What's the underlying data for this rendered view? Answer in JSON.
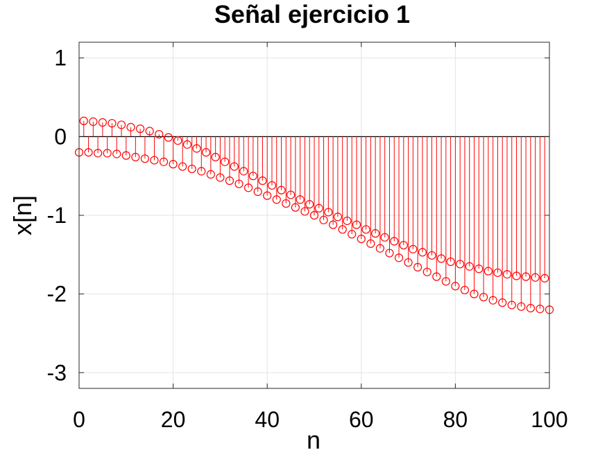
{
  "chart_data": {
    "type": "stem",
    "title": "Señal ejercicio 1",
    "xlabel": "n",
    "ylabel": "x[n]",
    "xlim": [
      0,
      100
    ],
    "ylim": [
      -3.2,
      1.2
    ],
    "xticks": [
      0,
      20,
      40,
      60,
      80,
      100
    ],
    "xtick_labels": [
      "0",
      "20",
      "40",
      "60",
      "80",
      "100"
    ],
    "yticks": [
      1,
      0,
      -1,
      -2,
      -3
    ],
    "ytick_labels": [
      "1",
      "0",
      "-1",
      "-2",
      "-3"
    ],
    "grid": true,
    "color": "#ff0000",
    "series": [
      {
        "x": [
          0,
          2,
          4,
          6,
          8,
          10,
          12,
          14,
          16,
          18,
          20,
          22,
          24,
          26,
          28,
          30,
          32,
          34,
          36,
          38,
          40,
          42,
          44,
          46,
          48,
          50,
          52,
          54,
          56,
          58,
          60,
          62,
          64,
          66,
          68,
          70,
          72,
          74,
          76,
          78,
          80,
          82,
          84,
          86,
          88,
          90,
          92,
          94,
          96,
          98,
          100
        ],
        "values": [
          -0.2,
          -0.2,
          -0.21,
          -0.21,
          -0.22,
          -0.24,
          -0.26,
          -0.28,
          -0.3,
          -0.32,
          -0.35,
          -0.38,
          -0.41,
          -0.44,
          -0.48,
          -0.52,
          -0.56,
          -0.6,
          -0.65,
          -0.7,
          -0.75,
          -0.8,
          -0.85,
          -0.9,
          -0.95,
          -1.0,
          -1.06,
          -1.12,
          -1.18,
          -1.24,
          -1.3,
          -1.36,
          -1.42,
          -1.48,
          -1.54,
          -1.6,
          -1.66,
          -1.72,
          -1.78,
          -1.84,
          -1.9,
          -1.95,
          -2.0,
          -2.04,
          -2.08,
          -2.11,
          -2.14,
          -2.16,
          -2.18,
          -2.19,
          -2.2
        ]
      },
      {
        "x": [
          1,
          3,
          5,
          7,
          9,
          11,
          13,
          15,
          17,
          19,
          21,
          23,
          25,
          27,
          29,
          31,
          33,
          35,
          37,
          39,
          41,
          43,
          45,
          47,
          49,
          51,
          53,
          55,
          57,
          59,
          61,
          63,
          65,
          67,
          69,
          71,
          73,
          75,
          77,
          79,
          81,
          83,
          85,
          87,
          89,
          91,
          93,
          95,
          97,
          99
        ],
        "values": [
          0.2,
          0.19,
          0.18,
          0.17,
          0.15,
          0.12,
          0.1,
          0.07,
          0.03,
          -0.01,
          -0.05,
          -0.1,
          -0.15,
          -0.2,
          -0.26,
          -0.32,
          -0.38,
          -0.44,
          -0.5,
          -0.56,
          -0.62,
          -0.68,
          -0.74,
          -0.8,
          -0.86,
          -0.91,
          -0.96,
          -1.02,
          -1.07,
          -1.12,
          -1.18,
          -1.23,
          -1.28,
          -1.33,
          -1.38,
          -1.43,
          -1.47,
          -1.51,
          -1.55,
          -1.59,
          -1.62,
          -1.65,
          -1.68,
          -1.71,
          -1.73,
          -1.75,
          -1.77,
          -1.78,
          -1.79,
          -1.8
        ]
      }
    ]
  }
}
